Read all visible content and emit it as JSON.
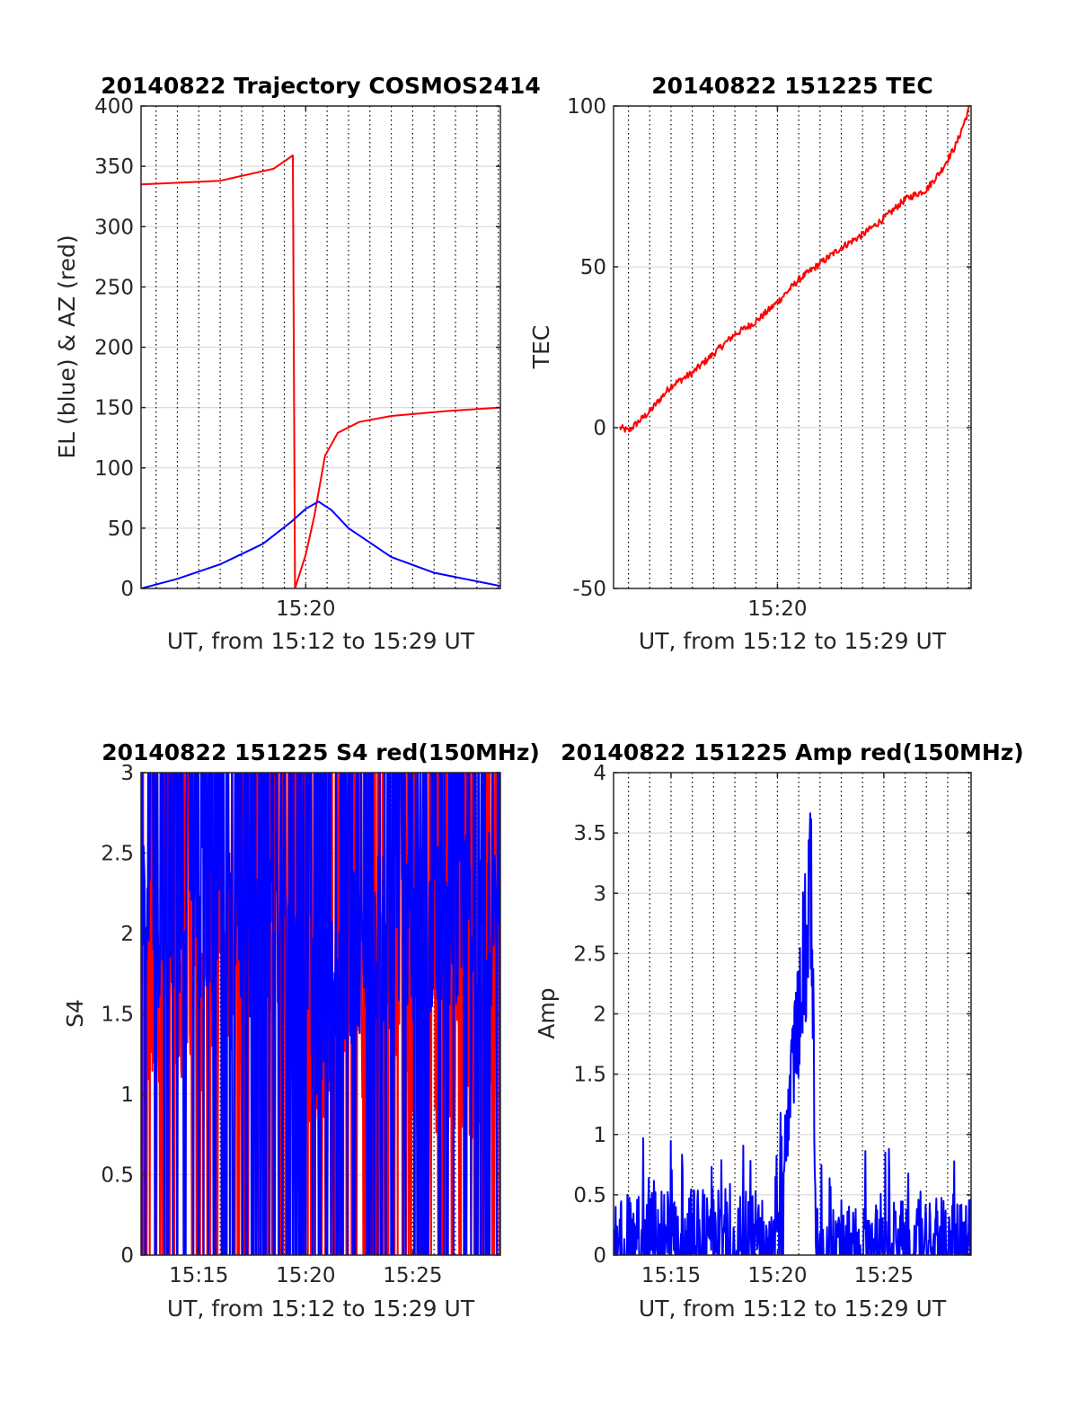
{
  "chart_data": [
    {
      "type": "line",
      "title": "20140822 Trajectory COSMOS2414",
      "xlabel": "UT, from 15:12 to 15:29 UT",
      "ylabel": "EL (blue) & AZ (red)",
      "xlim": [
        12.3,
        29.1
      ],
      "ylim": [
        0,
        400
      ],
      "yticks": [
        0,
        50,
        100,
        150,
        200,
        250,
        300,
        350,
        400
      ],
      "xticks": [
        {
          "v": 20,
          "label": "15:20"
        }
      ],
      "grid": true,
      "series": [
        {
          "color": "#ff0000",
          "style": "azimuth",
          "x": [
            12.3,
            16.0,
            18.5,
            19.4,
            19.5,
            19.5,
            20.0,
            20.4,
            20.9,
            21.5,
            22.5,
            24.0,
            26.5,
            29.1
          ],
          "values": [
            335,
            338,
            348,
            359,
            0,
            0,
            28,
            60,
            110,
            129,
            138,
            143,
            147,
            150
          ]
        },
        {
          "color": "#0000ff",
          "style": "elevation",
          "x": [
            12.3,
            14.0,
            16.0,
            18.0,
            19.3,
            20.0,
            20.6,
            21.2,
            22.0,
            24.0,
            26.0,
            29.1
          ],
          "values": [
            0,
            8,
            20,
            37,
            55,
            66,
            72,
            65,
            50,
            26,
            13,
            2
          ]
        }
      ]
    },
    {
      "type": "line",
      "title": "20140822 151225 TEC",
      "xlabel": "UT, from 15:12 to 15:29 UT",
      "ylabel": "TEC",
      "xlim": [
        12.3,
        29.1
      ],
      "ylim": [
        -50,
        100
      ],
      "yticks": [
        -50,
        0,
        50,
        100
      ],
      "xticks": [
        {
          "v": 20,
          "label": "15:20"
        }
      ],
      "grid": true,
      "series": [
        {
          "color": "#ff0000",
          "x": [
            12.6,
            13.0,
            14.0,
            15.0,
            16.0,
            17.0,
            18.0,
            19.0,
            20.0,
            21.0,
            22.0,
            23.0,
            24.0,
            25.0,
            26.0,
            27.0,
            27.7,
            28.4,
            29.0
          ],
          "values": [
            0,
            -1,
            5,
            13,
            17,
            23,
            29,
            33,
            39,
            46,
            51,
            56,
            60,
            65,
            71,
            74,
            80,
            88,
            99
          ]
        }
      ]
    },
    {
      "type": "line",
      "title": "20140822 151225 S4 red(150MHz)",
      "xlabel": "UT, from 15:12 to 15:29 UT",
      "ylabel": "S4",
      "xlim": [
        12.3,
        29.1
      ],
      "ylim": [
        0,
        3
      ],
      "yticks": [
        0,
        0.5,
        1,
        1.5,
        2,
        2.5,
        3
      ],
      "xticks": [
        {
          "v": 15,
          "label": "15:15"
        },
        {
          "v": 20,
          "label": "15:20"
        },
        {
          "v": 25,
          "label": "15:25"
        }
      ],
      "grid": true,
      "series": [
        {
          "color": "#ff0000",
          "style": "noise",
          "x": [
            12.3,
            17.0,
            19.0,
            20.5,
            22.5,
            27.8,
            29.1
          ],
          "values": [
            1.5,
            1.6,
            1.6,
            1.3,
            1.5,
            1.2,
            1.8
          ]
        },
        {
          "color": "#0000ff",
          "style": "noise",
          "x": [
            12.3,
            17.0,
            19.0,
            20.5,
            22.5,
            27.8,
            29.1
          ],
          "values": [
            2.1,
            2.0,
            1.9,
            1.5,
            1.9,
            2.1,
            2.1
          ]
        }
      ]
    },
    {
      "type": "line",
      "title": "20140822 151225 Amp red(150MHz)",
      "xlabel": "UT, from 15:12 to 15:29 UT",
      "ylabel": "Amp",
      "xlim": [
        12.3,
        29.1
      ],
      "ylim": [
        0,
        4
      ],
      "yticks": [
        0,
        0.5,
        1,
        1.5,
        2,
        2.5,
        3,
        3.5,
        4
      ],
      "xticks": [
        {
          "v": 15,
          "label": "15:15"
        },
        {
          "v": 20,
          "label": "15:20"
        },
        {
          "v": 25,
          "label": "15:25"
        }
      ],
      "grid": true,
      "series": [
        {
          "color": "#0000ff",
          "style": "noise",
          "x": [
            12.3,
            16.0,
            20.0,
            21.6,
            21.8,
            22.0,
            25.0,
            29.1
          ],
          "values": [
            0.42,
            0.45,
            0.42,
            3.88,
            0.4,
            0.3,
            0.35,
            0.42
          ]
        }
      ]
    }
  ]
}
